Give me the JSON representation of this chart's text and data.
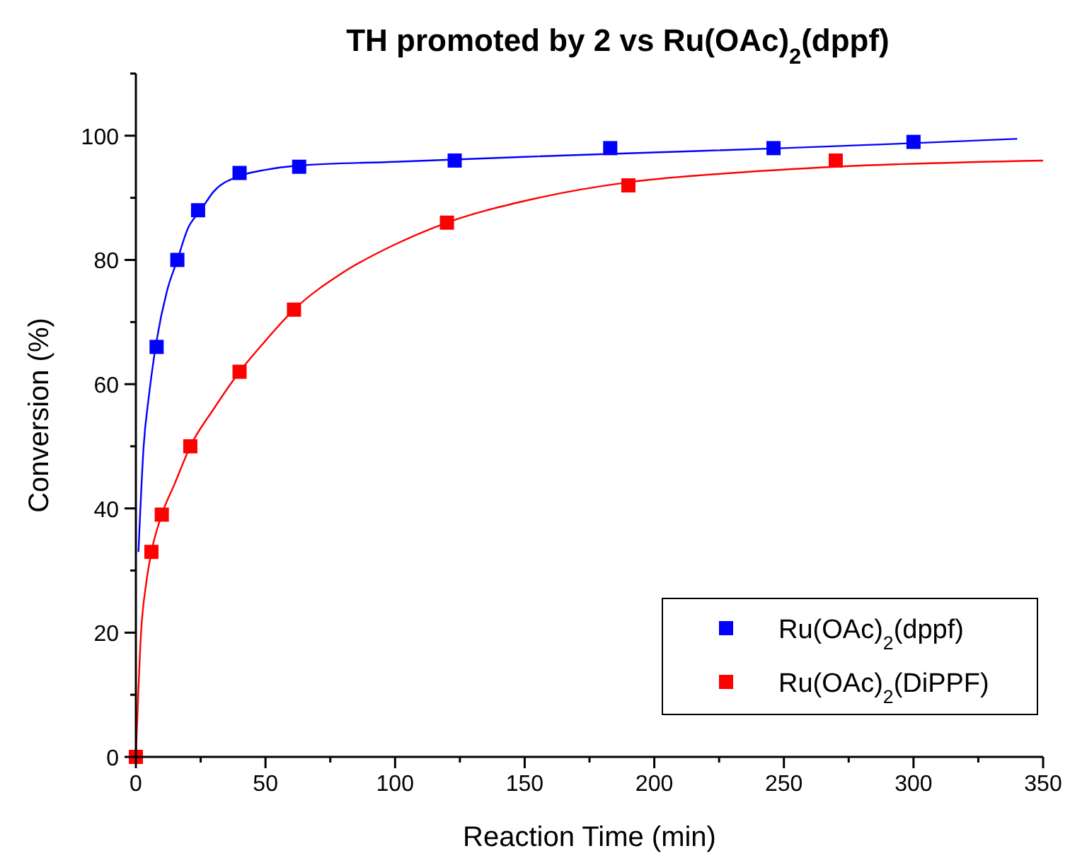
{
  "chart_data": {
    "type": "scatter",
    "title": "TH promoted by 2 vs Ru(OAc)$_{2}$(dppf)",
    "xlabel": "Reaction Time (min)",
    "ylabel": "Conversion (%)",
    "xlim": [
      0,
      350
    ],
    "ylim": [
      0,
      110
    ],
    "xticks": [
      0,
      {
        "value": 25,
        "label": null
      },
      50,
      {
        "value": 75,
        "label": null
      },
      100,
      {
        "value": 125,
        "label": null
      },
      150,
      {
        "value": 175,
        "label": null
      },
      200,
      {
        "value": 225,
        "label": null
      },
      250,
      {
        "value": 275,
        "label": null
      },
      300,
      {
        "value": 325,
        "label": null
      },
      350
    ],
    "yticks": [
      0,
      {
        "value": 10,
        "label": null
      },
      20,
      {
        "value": 30,
        "label": null
      },
      40,
      {
        "value": 50,
        "label": null
      },
      60,
      {
        "value": 70,
        "label": null
      },
      80,
      {
        "value": 90,
        "label": null
      },
      100,
      {
        "value": 110,
        "label": null
      }
    ],
    "grid": false,
    "legend": "bottom right",
    "marker": "square",
    "series": [
      {
        "type": "line",
        "color": "#0000ff",
        "marker": "none",
        "x": [
          1,
          3,
          5,
          8,
          12,
          16,
          20,
          25,
          30,
          40,
          50,
          63,
          100,
          150,
          200,
          250,
          300,
          340
        ],
        "values": [
          33,
          50,
          58,
          67,
          75,
          80,
          85,
          88,
          91,
          93.5,
          94.5,
          95.2,
          95.8,
          96.6,
          97.3,
          98,
          98.8,
          99.5
        ]
      },
      {
        "type": "line",
        "color": "#ff0000",
        "marker": "none",
        "x": [
          0,
          2,
          4,
          6,
          10,
          15,
          21,
          30,
          40,
          50,
          61,
          80,
          100,
          120,
          150,
          190,
          230,
          270,
          350
        ],
        "values": [
          0,
          20,
          28,
          33,
          39,
          44,
          50,
          56,
          62,
          67,
          72,
          78,
          82.5,
          86,
          89.5,
          92.5,
          94,
          95,
          96
        ]
      },
      {
        "name": "Ru(OAc)$_{2}$(dppf)",
        "color": "#0000ff",
        "x": [
          8,
          16,
          24,
          40,
          63,
          123,
          183,
          246,
          300
        ],
        "values": [
          66,
          80,
          88,
          94,
          95,
          96,
          98,
          98,
          99
        ]
      },
      {
        "name": "Ru(OAc)$_{2}$(DiPPF)",
        "color": "#ff0000",
        "x": [
          0,
          6,
          10,
          21,
          40,
          61,
          120,
          190,
          270
        ],
        "values": [
          0,
          33,
          39,
          50,
          62,
          72,
          86,
          92,
          96
        ]
      }
    ]
  }
}
